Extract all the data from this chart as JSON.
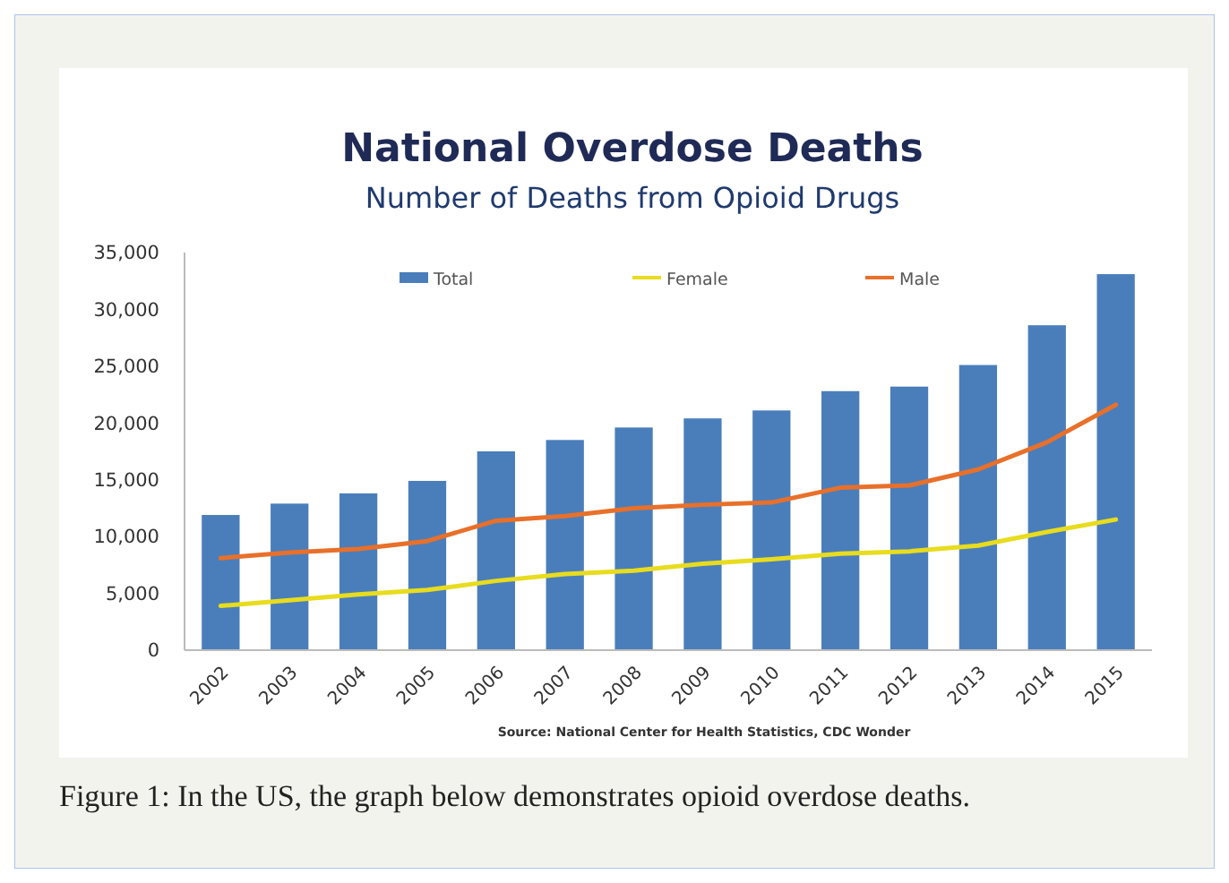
{
  "chart_data": {
    "type": "bar",
    "title": "National Overdose Deaths",
    "subtitle": "Number of Deaths from Opioid Drugs",
    "categories": [
      "2002",
      "2003",
      "2004",
      "2005",
      "2006",
      "2007",
      "2008",
      "2009",
      "2010",
      "2011",
      "2012",
      "2013",
      "2014",
      "2015"
    ],
    "series": [
      {
        "name": "Total",
        "color": "#4a7ebb",
        "values": [
          11900,
          12900,
          13800,
          14900,
          17500,
          18500,
          19600,
          20400,
          21100,
          22800,
          23200,
          25100,
          28600,
          33100
        ]
      },
      {
        "name": "Female",
        "type": "line",
        "color": "#e8dc1e",
        "values": [
          3900,
          4400,
          4900,
          5300,
          6100,
          6700,
          7000,
          7600,
          8000,
          8500,
          8700,
          9200,
          10400,
          11500
        ]
      },
      {
        "name": "Male",
        "type": "line",
        "color": "#e8702a",
        "values": [
          8100,
          8600,
          8900,
          9600,
          11400,
          11800,
          12500,
          12800,
          13000,
          14300,
          14500,
          15900,
          18300,
          21600
        ]
      }
    ],
    "ylim": [
      0,
      35000
    ],
    "yticks": [
      {
        "value": 0,
        "label": "0"
      },
      {
        "value": 5000,
        "label": "5,000"
      },
      {
        "value": 10000,
        "label": "10,000"
      },
      {
        "value": 15000,
        "label": "15,000"
      },
      {
        "value": 20000,
        "label": "20,000"
      },
      {
        "value": 25000,
        "label": "25,000"
      },
      {
        "value": 30000,
        "label": "30,000"
      },
      {
        "value": 35000,
        "label": "35,000"
      }
    ],
    "legend": "top",
    "grid": false,
    "annotations": [
      "Source: National Center for Health Statistics, CDC Wonder",
      "Figure 1: In the US, the graph below demonstrates opioid overdose deaths."
    ]
  }
}
